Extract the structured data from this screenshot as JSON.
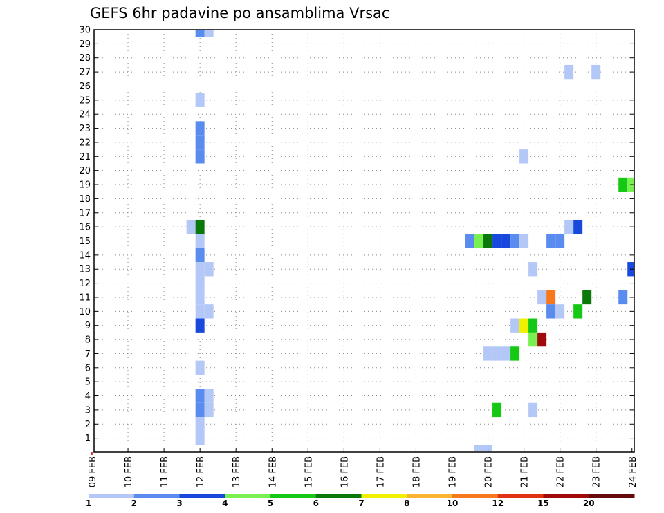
{
  "chart_data": {
    "type": "heatmap",
    "title": "GEFS 6hr padavine po ansamblima Vrsac",
    "x_start_day": 9,
    "x_end_day": 24,
    "x_tick_labels": [
      "09 FEB",
      "10 FEB",
      "11 FEB",
      "12 FEB",
      "13 FEB",
      "14 FEB",
      "15 FEB",
      "16 FEB",
      "17 FEB",
      "18 FEB",
      "19 FEB",
      "20 FEB",
      "21 FEB",
      "22 FEB",
      "23 FEB",
      "24 FEB"
    ],
    "y_ticks": [
      1,
      2,
      3,
      4,
      5,
      6,
      7,
      8,
      9,
      10,
      11,
      12,
      13,
      14,
      15,
      16,
      17,
      18,
      19,
      20,
      21,
      22,
      23,
      24,
      25,
      26,
      27,
      28,
      29,
      30
    ],
    "y_range": [
      0,
      30
    ],
    "grid": true,
    "colorbar": {
      "labels": [
        "1",
        "2",
        "3",
        "4",
        "5",
        "6",
        "7",
        "8",
        "10",
        "12",
        "15",
        "20"
      ],
      "colors": [
        "#b4c8f8",
        "#5a8cf0",
        "#1848dc",
        "#78f050",
        "#14c814",
        "#0a780a",
        "#f0f000",
        "#f8b432",
        "#f8781e",
        "#e13214",
        "#a00a0a",
        "#640a0a"
      ]
    },
    "cells": [
      [
        12.0,
        30,
        2
      ],
      [
        12.25,
        30,
        1
      ],
      [
        12.0,
        25,
        1
      ],
      [
        12.0,
        23,
        2
      ],
      [
        12.0,
        22,
        2
      ],
      [
        12.0,
        21,
        2
      ],
      [
        12.0,
        15,
        1
      ],
      [
        12.0,
        14,
        2
      ],
      [
        12.0,
        13,
        1
      ],
      [
        12.25,
        13,
        1
      ],
      [
        12.0,
        12,
        1
      ],
      [
        12.0,
        11,
        1
      ],
      [
        12.0,
        10,
        1
      ],
      [
        12.25,
        10,
        1
      ],
      [
        12.0,
        9,
        3
      ],
      [
        12.0,
        6,
        1
      ],
      [
        12.0,
        4,
        2
      ],
      [
        12.25,
        4,
        1
      ],
      [
        12.0,
        3,
        2
      ],
      [
        12.25,
        3,
        1
      ],
      [
        12.0,
        2,
        1
      ],
      [
        12.0,
        1,
        1
      ],
      [
        11.75,
        16,
        1
      ],
      [
        12.0,
        16,
        6
      ],
      [
        19.5,
        15,
        2
      ],
      [
        19.75,
        15,
        4
      ],
      [
        20.0,
        15,
        6
      ],
      [
        20.25,
        15,
        3
      ],
      [
        20.5,
        15,
        3
      ],
      [
        20.75,
        15,
        2
      ],
      [
        21.0,
        15,
        1
      ],
      [
        21.75,
        15,
        2
      ],
      [
        22.0,
        15,
        2
      ],
      [
        21.0,
        21,
        1
      ],
      [
        22.25,
        27,
        1
      ],
      [
        23.0,
        27,
        1
      ],
      [
        22.25,
        16,
        1
      ],
      [
        22.5,
        16,
        3
      ],
      [
        23.75,
        19,
        5
      ],
      [
        24.0,
        19,
        4
      ],
      [
        24.0,
        13,
        3
      ],
      [
        21.25,
        13,
        1
      ],
      [
        21.5,
        11,
        1
      ],
      [
        21.75,
        11,
        9
      ],
      [
        22.75,
        11,
        6
      ],
      [
        23.75,
        11,
        2
      ],
      [
        21.75,
        10,
        2
      ],
      [
        22.0,
        10,
        1
      ],
      [
        22.5,
        10,
        5
      ],
      [
        20.75,
        9,
        1
      ],
      [
        21.0,
        9,
        7
      ],
      [
        21.25,
        9,
        5
      ],
      [
        21.25,
        8,
        4
      ],
      [
        21.5,
        8,
        11
      ],
      [
        20.0,
        7,
        1
      ],
      [
        20.25,
        7,
        1
      ],
      [
        20.5,
        7,
        1
      ],
      [
        20.75,
        7,
        5
      ],
      [
        20.25,
        3,
        5
      ],
      [
        21.25,
        3,
        1
      ],
      [
        19.75,
        0,
        1
      ],
      [
        20.0,
        0,
        1
      ]
    ]
  }
}
